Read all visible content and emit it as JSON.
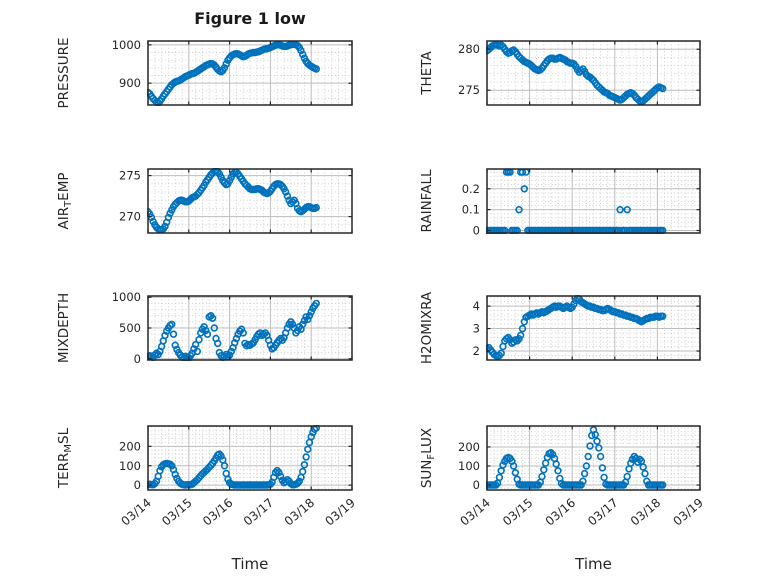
{
  "figure": {
    "title": "Figure 1 low",
    "background": "#ffffff",
    "marker_color": "#0072BD",
    "axis_color": "#262626",
    "major_grid_color": "#bdbdbd",
    "minor_grid_color": "#c9c9c9",
    "text_color": "#262626"
  },
  "x_axis": {
    "label": "Time",
    "tick_labels": [
      "03/14",
      "03/15",
      "03/16",
      "03/17",
      "03/18",
      "03/19"
    ],
    "span_days": 5,
    "minor_divisions_per_day": 6,
    "tick_rotation_deg": -40
  },
  "chart_data": [
    {
      "name": "PRESSURE",
      "type": "scatter",
      "row": 0,
      "col": 0,
      "ylabel_parts": [
        {
          "t": "PRESSURE"
        }
      ],
      "ylim": [
        843,
        1010
      ],
      "yticks": [
        900,
        1000
      ],
      "y_minor_step": 20,
      "x_step_hours": 1,
      "values": [
        876,
        872,
        866,
        860,
        855,
        851,
        849,
        853,
        859,
        866,
        872,
        878,
        884,
        890,
        896,
        900,
        903,
        905,
        906,
        908,
        911,
        914,
        917,
        919,
        921,
        923,
        925,
        926,
        928,
        931,
        934,
        937,
        940,
        943,
        946,
        948,
        950,
        951,
        950,
        947,
        942,
        936,
        932,
        930,
        933,
        940,
        950,
        960,
        966,
        971,
        974,
        976,
        977,
        976,
        974,
        971,
        969,
        970,
        973,
        976,
        978,
        979,
        980,
        980,
        981,
        982,
        984,
        986,
        988,
        989,
        990,
        991,
        993,
        995,
        997,
        999,
        1000,
        1000,
        999,
        997,
        996,
        996,
        997,
        999,
        1000,
        1001,
        1001,
        1000,
        998,
        993,
        985,
        975,
        965,
        957,
        951,
        947,
        944,
        941,
        939,
        937
      ]
    },
    {
      "name": "THETA",
      "type": "scatter",
      "row": 0,
      "col": 1,
      "ylabel_parts": [
        {
          "t": "THETA"
        }
      ],
      "ylim": [
        273.2,
        281
      ],
      "yticks": [
        275,
        280
      ],
      "y_minor_step": 1,
      "x_step_hours": 1,
      "values": [
        279.8,
        280,
        280.2,
        280.4,
        280.5,
        280.6,
        280.5,
        280.4,
        280.5,
        280.3,
        280,
        279.7,
        279.5,
        279.6,
        279.8,
        279.9,
        279.7,
        279.4,
        279.1,
        278.9,
        278.7,
        278.5,
        278.4,
        278.3,
        278.2,
        278,
        277.8,
        277.6,
        277.5,
        277.4,
        277.5,
        277.7,
        278,
        278.3,
        278.6,
        278.8,
        278.9,
        278.9,
        278.8,
        278.8,
        278.9,
        279,
        278.9,
        278.8,
        278.7,
        278.5,
        278.4,
        278.3,
        278.3,
        278.2,
        277.9,
        277.5,
        277.2,
        277.4,
        277.6,
        277.3,
        276.9,
        276.7,
        276.6,
        276.4,
        276.2,
        275.9,
        275.6,
        275.4,
        275.2,
        275,
        274.8,
        274.7,
        274.6,
        274.4,
        274.3,
        274.2,
        274.1,
        274,
        273.9,
        273.8,
        273.9,
        274.1,
        274.3,
        274.5,
        274.6,
        274.7,
        274.6,
        274.4,
        274.1,
        273.9,
        273.7,
        273.6,
        273.7,
        273.9,
        274.1,
        274.3,
        274.5,
        274.7,
        274.9,
        275.1,
        275.3,
        275.4,
        275.3,
        275.2
      ]
    },
    {
      "name": "AIR_TEMP",
      "type": "scatter",
      "row": 1,
      "col": 0,
      "ylabel_parts": [
        {
          "t": "AIR"
        },
        {
          "t": "T",
          "sub": true
        },
        {
          "t": "EMP"
        }
      ],
      "ylim": [
        268,
        275.8
      ],
      "yticks": [
        270,
        275
      ],
      "y_minor_step": 1,
      "x_step_hours": 1,
      "values": [
        270.6,
        270.3,
        269.9,
        269.4,
        269,
        268.7,
        268.5,
        268.4,
        268.4,
        268.5,
        268.8,
        269.3,
        269.9,
        270.4,
        270.8,
        271.2,
        271.5,
        271.7,
        271.9,
        272,
        272,
        271.9,
        271.8,
        271.8,
        271.9,
        272.1,
        272.3,
        272.4,
        272.5,
        272.7,
        272.9,
        273.2,
        273.5,
        273.8,
        274.2,
        274.5,
        274.8,
        275.1,
        275.3,
        275.5,
        275.6,
        275.5,
        275.2,
        274.8,
        274.4,
        274.1,
        273.9,
        274,
        274.4,
        274.8,
        275.2,
        275.4,
        275.4,
        275.2,
        274.9,
        274.6,
        274.3,
        274,
        273.8,
        273.6,
        273.4,
        273.3,
        273.3,
        273.3,
        273.4,
        273.4,
        273.3,
        273.2,
        273,
        272.9,
        272.8,
        272.9,
        273.1,
        273.4,
        273.7,
        273.9,
        274,
        274,
        273.9,
        273.7,
        273.4,
        273,
        272.5,
        272,
        271.6,
        271.8,
        272,
        271.6,
        271,
        270.7,
        270.6,
        270.7,
        270.9,
        271.1,
        271.2,
        271.2,
        271.1,
        271,
        271,
        271.1
      ]
    },
    {
      "name": "RAINFALL",
      "type": "scatter",
      "row": 1,
      "col": 1,
      "ylabel_parts": [
        {
          "t": "RAINFALL"
        }
      ],
      "ylim": [
        -0.012,
        0.295
      ],
      "yticks": [
        0,
        0.1,
        0.2
      ],
      "y_minor_step": 0.02,
      "x_step_hours": 1,
      "values": [
        0,
        0,
        0,
        0,
        0,
        0,
        0,
        0,
        0,
        0,
        0,
        0.28,
        0.28,
        0.28,
        0,
        0,
        0,
        0,
        0.1,
        0.28,
        0.28,
        0.2,
        0.28,
        0,
        0,
        0,
        0,
        0,
        0,
        0,
        0,
        0,
        0,
        0,
        0,
        0,
        0,
        0,
        0,
        0,
        0,
        0,
        0,
        0,
        0,
        0,
        0,
        0,
        0,
        0,
        0,
        0,
        0,
        0,
        0,
        0,
        0,
        0,
        0,
        0,
        0,
        0,
        0,
        0,
        0,
        0,
        0,
        0,
        0,
        0,
        0,
        0,
        0,
        0,
        0,
        0.1,
        0,
        0,
        0,
        0.1,
        0,
        0,
        0,
        0,
        0,
        0,
        0,
        0,
        0,
        0,
        0,
        0,
        0,
        0,
        0,
        0,
        0,
        0,
        0,
        0
      ]
    },
    {
      "name": "MIXDEPTH",
      "type": "scatter",
      "row": 2,
      "col": 0,
      "ylabel_parts": [
        {
          "t": "MIXDEPTH"
        }
      ],
      "ylim": [
        -20,
        1020
      ],
      "yticks": [
        0,
        500,
        1000
      ],
      "y_minor_step": 100,
      "x_step_hours": 1,
      "values": [
        30,
        50,
        40,
        20,
        60,
        90,
        70,
        120,
        200,
        290,
        380,
        450,
        500,
        540,
        560,
        400,
        220,
        150,
        100,
        60,
        30,
        10,
        40,
        20,
        10,
        50,
        90,
        160,
        230,
        120,
        310,
        420,
        480,
        520,
        460,
        400,
        680,
        700,
        660,
        500,
        330,
        250,
        100,
        50,
        20,
        40,
        70,
        30,
        60,
        120,
        180,
        260,
        330,
        400,
        450,
        480,
        420,
        250,
        210,
        230,
        220,
        240,
        260,
        310,
        360,
        400,
        420,
        380,
        400,
        420,
        380,
        300,
        220,
        160,
        180,
        220,
        260,
        300,
        330,
        300,
        340,
        420,
        500,
        560,
        600,
        560,
        500,
        420,
        460,
        520,
        480,
        560,
        620,
        680,
        640,
        700,
        760,
        820,
        860,
        900
      ]
    },
    {
      "name": "H2OMIXRA",
      "type": "scatter",
      "row": 2,
      "col": 1,
      "ylabel_parts": [
        {
          "t": "H2OMIXRA"
        }
      ],
      "ylim": [
        1.6,
        4.45
      ],
      "yticks": [
        2,
        3,
        4
      ],
      "y_minor_step": 0.2,
      "x_step_hours": 1,
      "values": [
        2.1,
        2.15,
        2.05,
        1.95,
        1.85,
        1.8,
        1.75,
        1.8,
        1.9,
        2.2,
        2.45,
        2.55,
        2.6,
        2.5,
        2.35,
        2.4,
        2.5,
        2.45,
        2.55,
        2.7,
        3,
        3.3,
        3.5,
        3.55,
        3.6,
        3.65,
        3.6,
        3.65,
        3.7,
        3.65,
        3.7,
        3.75,
        3.7,
        3.75,
        3.8,
        3.85,
        3.9,
        3.95,
        4,
        3.95,
        4,
        4,
        3.95,
        3.9,
        3.95,
        4,
        3.95,
        3.9,
        3.95,
        4.1,
        4.25,
        4.35,
        4.3,
        4.2,
        4.15,
        4.1,
        4.05,
        4,
        4,
        3.95,
        3.95,
        3.9,
        3.9,
        3.85,
        3.85,
        3.8,
        3.8,
        3.85,
        3.9,
        3.85,
        3.8,
        3.75,
        3.75,
        3.7,
        3.7,
        3.65,
        3.65,
        3.6,
        3.6,
        3.55,
        3.55,
        3.5,
        3.5,
        3.45,
        3.45,
        3.4,
        3.35,
        3.3,
        3.35,
        3.4,
        3.45,
        3.45,
        3.5,
        3.5,
        3.5,
        3.55,
        3.55,
        3.5,
        3.55,
        3.55
      ]
    },
    {
      "name": "TERR_MSL",
      "type": "scatter",
      "row": 3,
      "col": 0,
      "ylabel_parts": [
        {
          "t": "TERR"
        },
        {
          "t": "M",
          "sub": true
        },
        {
          "t": "SL"
        }
      ],
      "ylim": [
        -25,
        305
      ],
      "yticks": [
        0,
        100,
        200
      ],
      "y_minor_step": 20,
      "x_step_hours": 1,
      "values": [
        2,
        5,
        3,
        2,
        8,
        20,
        45,
        75,
        95,
        105,
        110,
        112,
        110,
        108,
        100,
        80,
        55,
        35,
        20,
        10,
        5,
        2,
        1,
        2,
        3,
        2,
        5,
        12,
        20,
        28,
        38,
        48,
        58,
        66,
        74,
        82,
        92,
        102,
        112,
        125,
        140,
        155,
        160,
        150,
        130,
        100,
        60,
        30,
        12,
        5,
        2,
        1,
        1,
        1,
        1,
        1,
        1,
        1,
        1,
        1,
        1,
        1,
        1,
        1,
        1,
        1,
        1,
        1,
        1,
        1,
        1,
        2,
        5,
        15,
        40,
        65,
        75,
        65,
        45,
        25,
        12,
        18,
        28,
        20,
        8,
        2,
        2,
        5,
        10,
        20,
        40,
        70,
        105,
        145,
        185,
        220,
        250,
        272,
        288,
        295
      ]
    },
    {
      "name": "SUN_FLUX",
      "type": "scatter",
      "row": 3,
      "col": 1,
      "ylabel_parts": [
        {
          "t": "SUN"
        },
        {
          "t": "F",
          "sub": true
        },
        {
          "t": "LUX"
        }
      ],
      "ylim": [
        -26,
        310
      ],
      "yticks": [
        0,
        100,
        200
      ],
      "y_minor_step": 20,
      "x_step_hours": 1,
      "values": [
        0,
        0,
        0,
        0,
        0,
        0,
        10,
        40,
        75,
        105,
        125,
        140,
        145,
        140,
        125,
        100,
        65,
        30,
        5,
        0,
        0,
        0,
        0,
        0,
        0,
        0,
        0,
        0,
        0,
        0,
        15,
        45,
        80,
        115,
        145,
        165,
        170,
        160,
        140,
        110,
        75,
        35,
        8,
        0,
        0,
        0,
        0,
        0,
        0,
        0,
        0,
        0,
        0,
        0,
        20,
        60,
        100,
        150,
        205,
        260,
        290,
        265,
        230,
        195,
        150,
        90,
        40,
        5,
        0,
        0,
        0,
        0,
        0,
        0,
        0,
        0,
        0,
        0,
        15,
        45,
        85,
        115,
        135,
        150,
        140,
        120,
        135,
        125,
        95,
        60,
        20,
        0,
        0,
        0,
        0,
        0,
        0,
        0,
        0,
        0
      ]
    }
  ]
}
